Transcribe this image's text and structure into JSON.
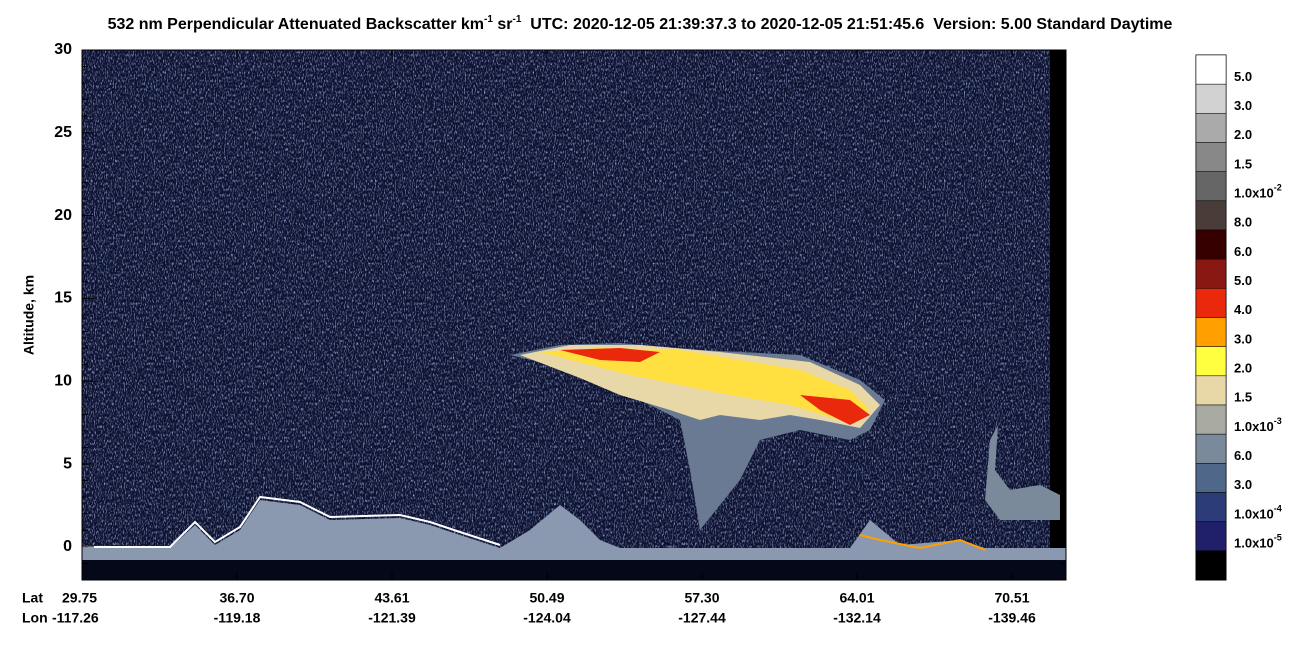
{
  "chart_data": {
    "type": "heatmap",
    "title": {
      "main": "532 nm Perpendicular Attenuated Backscatter km",
      "sup1": "-1",
      "mid": " sr",
      "sup2": "-1",
      "rest": "  UTC: 2020-12-05 21:39:37.3 to 2020-12-05 21:51:45.6  Version: 5.00 Standard Daytime"
    },
    "y_label": "Altitude, km",
    "ylim": [
      -2,
      30
    ],
    "yticks": [
      0,
      5,
      10,
      15,
      20,
      25,
      30
    ],
    "x_row_labels": [
      "Lat",
      "Lon"
    ],
    "lat_labels": [
      "29.75",
      "36.70",
      "43.61",
      "50.49",
      "57.30",
      "64.01",
      "70.51"
    ],
    "lon_labels": [
      "-117.26",
      "-119.18",
      "-121.39",
      "-124.04",
      "-127.44",
      "-132.14",
      "-139.46"
    ],
    "colorbar": [
      {
        "label": "5.0",
        "color": "#ffffff"
      },
      {
        "label": "3.0",
        "color": "#d2d2d2"
      },
      {
        "label": "2.0",
        "color": "#aaaaaa"
      },
      {
        "label": "1.5",
        "color": "#888888"
      },
      {
        "label": "1.0x10",
        "sup": "-2",
        "color": "#666666"
      },
      {
        "label": "8.0",
        "color": "#4a3d39"
      },
      {
        "label": "6.0",
        "color": "#360000"
      },
      {
        "label": "5.0",
        "color": "#8a1812"
      },
      {
        "label": "4.0",
        "color": "#ea280c"
      },
      {
        "label": "3.0",
        "color": "#ffa000"
      },
      {
        "label": "2.0",
        "color": "#ffff40"
      },
      {
        "label": "1.5",
        "color": "#e8d8a8"
      },
      {
        "label": "1.0x10",
        "sup": "-3",
        "color": "#a8aaa2"
      },
      {
        "label": "6.0",
        "color": "#7a8a9a"
      },
      {
        "label": "3.0",
        "color": "#4f6788"
      },
      {
        "label": "1.0x10",
        "sup": "-4",
        "color": "#2c3c78"
      },
      {
        "label": "1.0x10",
        "sup": "-5",
        "color": "#20206a"
      },
      {
        "color": "#000000"
      }
    ]
  }
}
